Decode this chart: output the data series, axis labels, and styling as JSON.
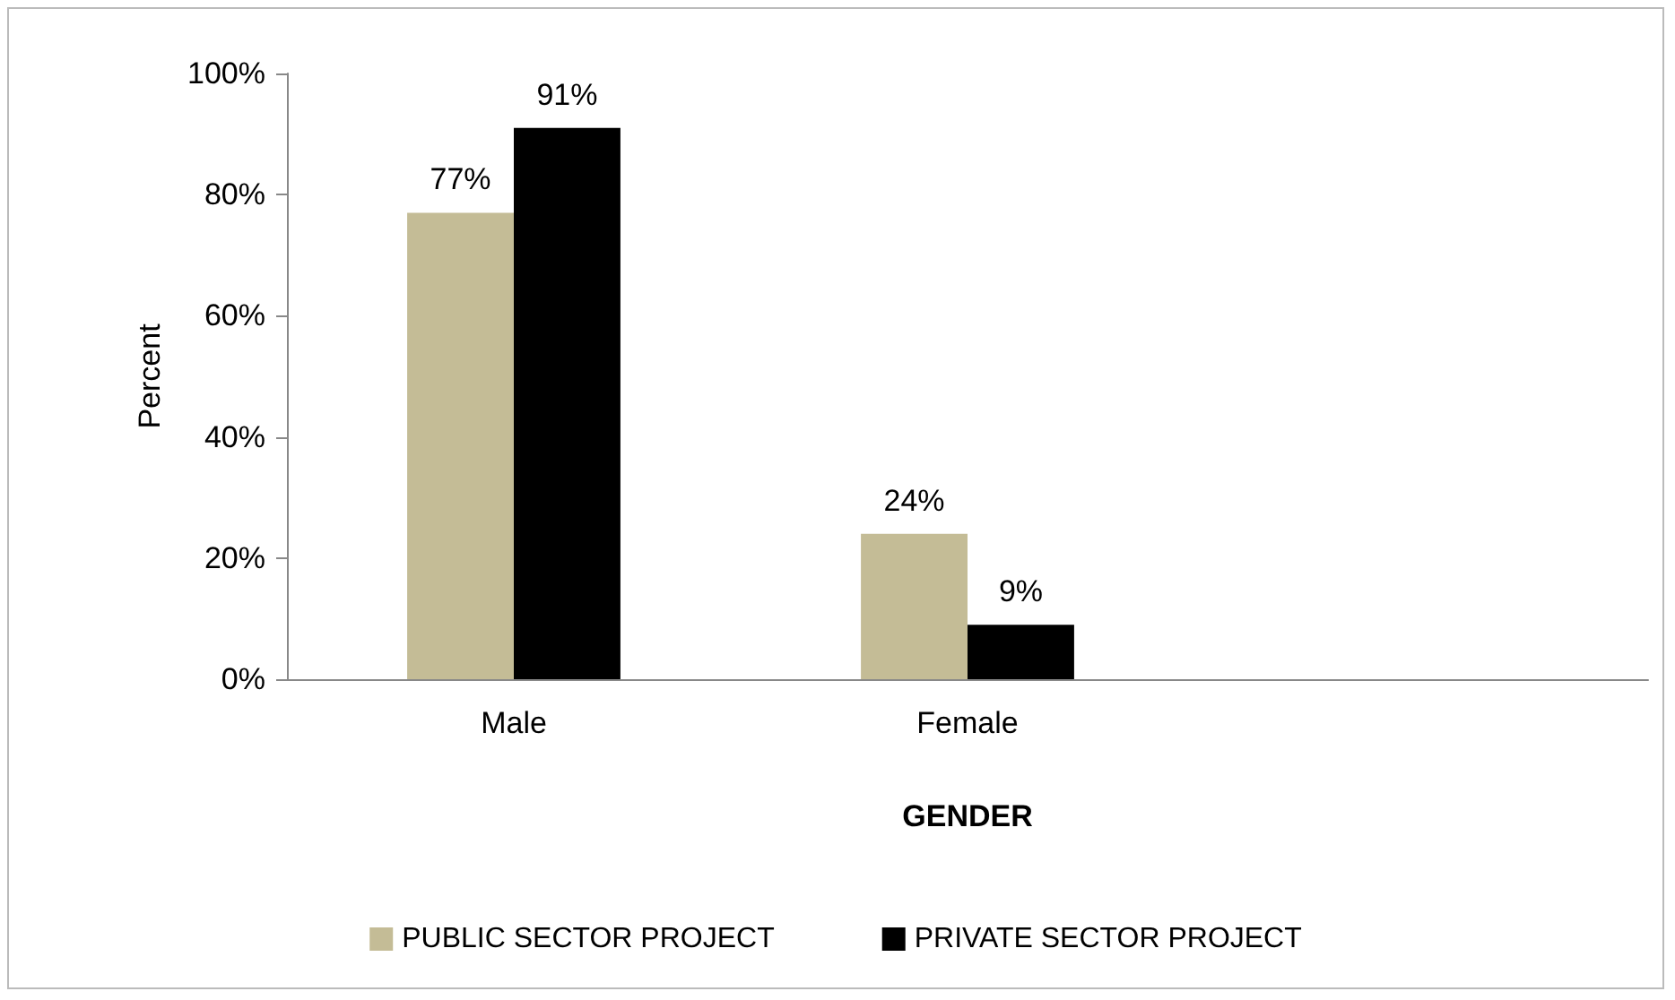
{
  "chart_data": {
    "type": "bar",
    "xlabel": "GENDER",
    "ylabel": "Percent",
    "categories": [
      "Male",
      "Female",
      null
    ],
    "series": [
      {
        "name": "PUBLIC SECTOR PROJECT",
        "color": "#c4bc96",
        "values": [
          77,
          24,
          null
        ],
        "value_labels": [
          "77%",
          "24%",
          null
        ]
      },
      {
        "name": "PRIVATE SECTOR PROJECT",
        "color": "#000000",
        "values": [
          91,
          9,
          null
        ],
        "value_labels": [
          "91%",
          "9%",
          null
        ]
      }
    ],
    "ylim": [
      0,
      100
    ],
    "yticks": [
      {
        "value": 0,
        "label": "0%"
      },
      {
        "value": 20,
        "label": "20%"
      },
      {
        "value": 40,
        "label": "40%"
      },
      {
        "value": 60,
        "label": "60%"
      },
      {
        "value": 80,
        "label": "80%"
      },
      {
        "value": 100,
        "label": "100%"
      }
    ],
    "grid": false,
    "legend": "bottom"
  }
}
